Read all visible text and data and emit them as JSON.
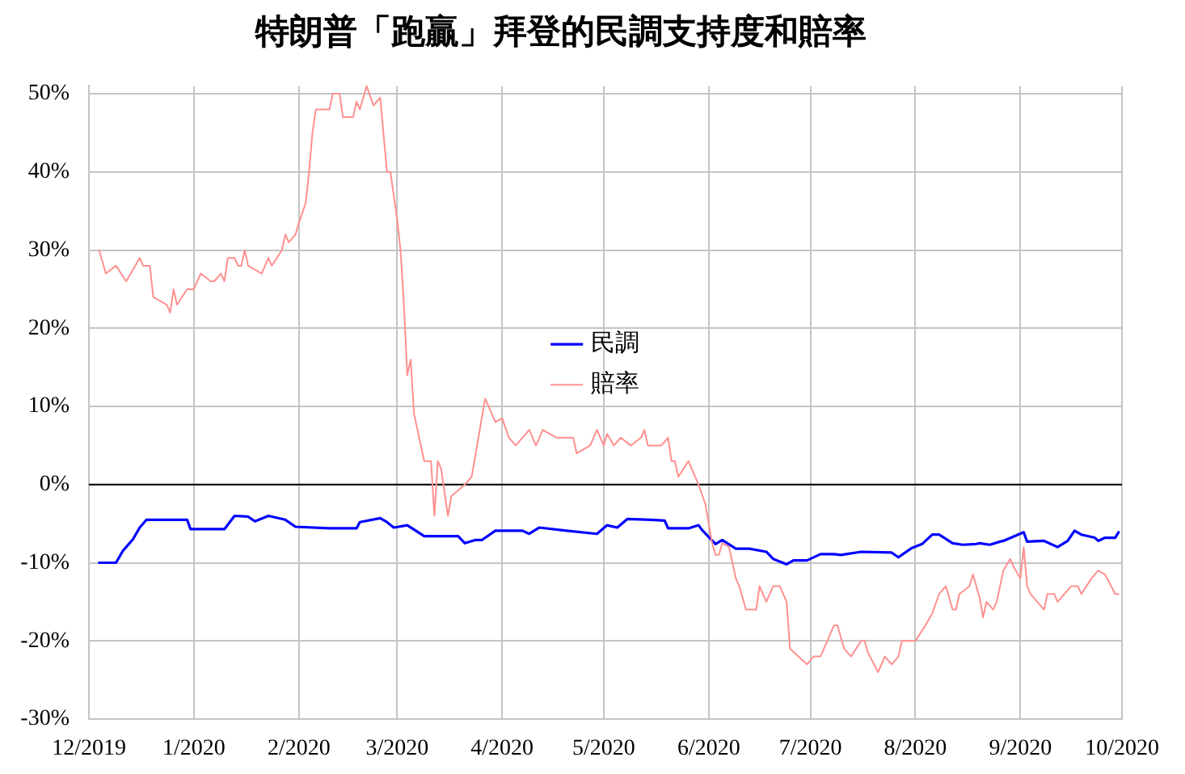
{
  "chart_data": {
    "type": "line",
    "title": "特朗普「跑贏」拜登的民調支持度和賠率",
    "xlim": [
      "2019-12-01",
      "2020-10-01"
    ],
    "xticks": [
      {
        "value": "2019-12-01",
        "label": "12/2019"
      },
      {
        "value": "2020-01-01",
        "label": "1/2020"
      },
      {
        "value": "2020-02-01",
        "label": "2/2020"
      },
      {
        "value": "2020-03-01",
        "label": "3/2020"
      },
      {
        "value": "2020-04-01",
        "label": "4/2020"
      },
      {
        "value": "2020-05-01",
        "label": "5/2020"
      },
      {
        "value": "2020-06-01",
        "label": "6/2020"
      },
      {
        "value": "2020-07-01",
        "label": "7/2020"
      },
      {
        "value": "2020-08-01",
        "label": "8/2020"
      },
      {
        "value": "2020-09-01",
        "label": "9/2020"
      },
      {
        "value": "2020-10-01",
        "label": "10/2020"
      }
    ],
    "ylim": [
      -30,
      51
    ],
    "yticks": [
      {
        "value": -30,
        "label": "-30%"
      },
      {
        "value": -20,
        "label": "-20%"
      },
      {
        "value": -10,
        "label": "-10%"
      },
      {
        "value": 0,
        "label": "0%"
      },
      {
        "value": 10,
        "label": "10%"
      },
      {
        "value": 20,
        "label": "20%"
      },
      {
        "value": 30,
        "label": "30%"
      },
      {
        "value": 40,
        "label": "40%"
      },
      {
        "value": 50,
        "label": "50%"
      }
    ],
    "grid": true,
    "legend": "center",
    "ref_lines": [
      {
        "axis": "y",
        "value": 0,
        "color": "#000000"
      }
    ],
    "series": [
      {
        "name": "民調",
        "color": "#0000ff",
        "x": [
          "2019-12-04",
          "2019-12-09",
          "2019-12-11",
          "2019-12-12",
          "2019-12-14",
          "2019-12-16",
          "2019-12-18",
          "2019-12-30",
          "2019-12-31",
          "2020-01-10",
          "2020-01-13",
          "2020-01-17",
          "2020-01-19",
          "2020-01-23",
          "2020-01-28",
          "2020-01-31",
          "2020-02-10",
          "2020-02-18",
          "2020-02-19",
          "2020-02-25",
          "2020-02-27",
          "2020-02-29",
          "2020-03-04",
          "2020-03-09",
          "2020-03-19",
          "2020-03-21",
          "2020-03-24",
          "2020-03-26",
          "2020-03-30",
          "2020-04-07",
          "2020-04-09",
          "2020-04-12",
          "2020-04-20",
          "2020-04-29",
          "2020-05-02",
          "2020-05-05",
          "2020-05-08",
          "2020-05-15",
          "2020-05-19",
          "2020-05-20",
          "2020-05-26",
          "2020-05-29",
          "2020-05-30",
          "2020-06-03",
          "2020-06-05",
          "2020-06-09",
          "2020-06-13",
          "2020-06-18",
          "2020-06-20",
          "2020-06-24",
          "2020-06-26",
          "2020-06-30",
          "2020-07-04",
          "2020-07-08",
          "2020-07-10",
          "2020-07-16",
          "2020-07-25",
          "2020-07-27",
          "2020-07-31",
          "2020-08-03",
          "2020-08-06",
          "2020-08-08",
          "2020-08-12",
          "2020-08-15",
          "2020-08-19",
          "2020-08-20",
          "2020-08-23",
          "2020-08-26",
          "2020-08-27",
          "2020-09-02",
          "2020-09-03",
          "2020-09-08",
          "2020-09-12",
          "2020-09-15",
          "2020-09-17",
          "2020-09-19",
          "2020-09-23",
          "2020-09-24",
          "2020-09-26",
          "2020-09-29",
          "2020-09-30"
        ],
        "values": [
          -10,
          -10,
          -8.5,
          -8,
          -7,
          -5.5,
          -4.5,
          -4.5,
          -5.7,
          -5.7,
          -4,
          -4.1,
          -4.7,
          -4,
          -4.5,
          -5.4,
          -5.6,
          -5.6,
          -4.8,
          -4.3,
          -4.8,
          -5.5,
          -5.2,
          -6.6,
          -6.6,
          -7.5,
          -7.1,
          -7.1,
          -5.9,
          -5.9,
          -6.3,
          -5.5,
          -5.9,
          -6.3,
          -5.2,
          -5.5,
          -4.4,
          -4.5,
          -4.6,
          -5.6,
          -5.6,
          -5.2,
          -5.8,
          -7.6,
          -7.1,
          -8.2,
          -8.2,
          -8.6,
          -9.5,
          -10.2,
          -9.7,
          -9.7,
          -8.9,
          -8.9,
          -9,
          -8.6,
          -8.7,
          -9.3,
          -8.1,
          -7.6,
          -6.4,
          -6.4,
          -7.5,
          -7.7,
          -7.6,
          -7.5,
          -7.7,
          -7.3,
          -7.2,
          -6.1,
          -7.3,
          -7.2,
          -8,
          -7.2,
          -5.9,
          -6.4,
          -6.8,
          -7.2,
          -6.8,
          -6.8,
          -6.1
        ]
      },
      {
        "name": "賠率",
        "color": "#ff9090",
        "x": [
          "2019-12-04",
          "2019-12-06",
          "2019-12-09",
          "2019-12-12",
          "2019-12-16",
          "2019-12-17",
          "2019-12-19",
          "2019-12-20",
          "2019-12-24",
          "2019-12-25",
          "2019-12-26",
          "2019-12-27",
          "2019-12-30",
          "2020-01-01",
          "2020-01-03",
          "2020-01-06",
          "2020-01-07",
          "2020-01-09",
          "2020-01-10",
          "2020-01-11",
          "2020-01-13",
          "2020-01-14",
          "2020-01-15",
          "2020-01-16",
          "2020-01-17",
          "2020-01-21",
          "2020-01-23",
          "2020-01-24",
          "2020-01-27",
          "2020-01-28",
          "2020-01-29",
          "2020-01-31",
          "2020-02-01",
          "2020-02-03",
          "2020-02-04",
          "2020-02-05",
          "2020-02-06",
          "2020-02-10",
          "2020-02-11",
          "2020-02-13",
          "2020-02-14",
          "2020-02-17",
          "2020-02-18",
          "2020-02-19",
          "2020-02-21",
          "2020-02-23",
          "2020-02-24",
          "2020-02-25",
          "2020-02-27",
          "2020-02-28",
          "2020-03-01",
          "2020-03-02",
          "2020-03-03",
          "2020-03-04",
          "2020-03-05",
          "2020-03-06",
          "2020-03-09",
          "2020-03-11",
          "2020-03-12",
          "2020-03-13",
          "2020-03-14",
          "2020-03-16",
          "2020-03-17",
          "2020-03-21",
          "2020-03-23",
          "2020-03-25",
          "2020-03-27",
          "2020-03-29",
          "2020-03-30",
          "2020-04-01",
          "2020-04-03",
          "2020-04-05",
          "2020-04-09",
          "2020-04-11",
          "2020-04-13",
          "2020-04-17",
          "2020-04-22",
          "2020-04-23",
          "2020-04-27",
          "2020-04-29",
          "2020-05-01",
          "2020-05-02",
          "2020-05-04",
          "2020-05-06",
          "2020-05-09",
          "2020-05-12",
          "2020-05-13",
          "2020-05-14",
          "2020-05-18",
          "2020-05-20",
          "2020-05-21",
          "2020-05-22",
          "2020-05-23",
          "2020-05-26",
          "2020-05-29",
          "2020-05-31",
          "2020-06-01",
          "2020-06-02",
          "2020-06-03",
          "2020-06-04",
          "2020-06-05",
          "2020-06-07",
          "2020-06-09",
          "2020-06-10",
          "2020-06-12",
          "2020-06-15",
          "2020-06-16",
          "2020-06-18",
          "2020-06-20",
          "2020-06-22",
          "2020-06-24",
          "2020-06-25",
          "2020-06-30",
          "2020-07-02",
          "2020-07-04",
          "2020-07-08",
          "2020-07-09",
          "2020-07-11",
          "2020-07-13",
          "2020-07-16",
          "2020-07-17",
          "2020-07-18",
          "2020-07-21",
          "2020-07-23",
          "2020-07-25",
          "2020-07-27",
          "2020-07-28",
          "2020-08-01",
          "2020-08-04",
          "2020-08-06",
          "2020-08-08",
          "2020-08-10",
          "2020-08-12",
          "2020-08-13",
          "2020-08-14",
          "2020-08-17",
          "2020-08-18",
          "2020-08-20",
          "2020-08-21",
          "2020-08-22",
          "2020-08-24",
          "2020-08-25",
          "2020-08-27",
          "2020-08-29",
          "2020-08-30",
          "2020-09-01",
          "2020-09-02",
          "2020-09-03",
          "2020-09-04",
          "2020-09-08",
          "2020-09-09",
          "2020-09-11",
          "2020-09-12",
          "2020-09-16",
          "2020-09-18",
          "2020-09-19",
          "2020-09-22",
          "2020-09-24",
          "2020-09-26",
          "2020-09-29",
          "2020-09-30"
        ],
        "values": [
          30,
          27,
          28,
          26,
          29,
          28,
          28,
          24,
          23,
          22,
          25,
          23,
          25,
          25,
          27,
          26,
          26,
          27,
          26,
          29,
          29,
          28,
          28,
          30,
          28,
          27,
          29,
          28,
          30,
          32,
          31,
          32,
          33.5,
          36,
          40,
          45,
          48,
          48,
          50,
          50,
          47,
          47,
          49,
          48,
          51,
          48.5,
          49,
          49.5,
          40,
          40,
          34,
          30,
          23,
          14,
          16,
          9,
          3,
          3,
          -4,
          3,
          2,
          -4,
          -1.5,
          0,
          1,
          6,
          11,
          9,
          8,
          8.5,
          6,
          5,
          7,
          5,
          7,
          6,
          6,
          4,
          5,
          7,
          5,
          6.5,
          5,
          6,
          5,
          6,
          7,
          5,
          5,
          6,
          3,
          3,
          1,
          3,
          0,
          -2.5,
          -5,
          -7.5,
          -9,
          -9,
          -7.5,
          -8,
          -12,
          -13,
          -16,
          -16,
          -13,
          -15,
          -13,
          -13,
          -15,
          -21,
          -23,
          -22,
          -22,
          -18,
          -18,
          -21,
          -22,
          -20,
          -20,
          -21.5,
          -24,
          -22,
          -23,
          -22,
          -20,
          -20,
          -18,
          -16.5,
          -14,
          -13,
          -16,
          -16,
          -14,
          -13,
          -11.5,
          -14.5,
          -17,
          -15,
          -16,
          -15,
          -11,
          -9.5,
          -10.5,
          -12,
          -8,
          -13,
          -14,
          -16,
          -14,
          -14,
          -15,
          -13,
          -13,
          -14,
          -12,
          -11,
          -11.5,
          -14,
          -14
        ]
      }
    ]
  }
}
